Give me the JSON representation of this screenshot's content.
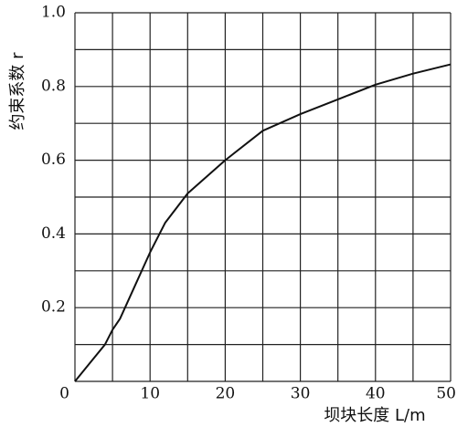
{
  "chart_data": {
    "type": "line",
    "ylabel": "约束系数 r",
    "xlabel": "坝块长度 L/m",
    "x": [
      0,
      2,
      4,
      5,
      6,
      8,
      10,
      12,
      15,
      20,
      25,
      30,
      35,
      40,
      45,
      50
    ],
    "series": [
      {
        "color": "#111111",
        "values": [
          0,
          0.05,
          0.1,
          0.14,
          0.17,
          0.26,
          0.35,
          0.43,
          0.51,
          0.6,
          0.68,
          0.725,
          0.765,
          0.805,
          0.835,
          0.86
        ]
      }
    ],
    "xlim": [
      0,
      50
    ],
    "ylim": [
      0,
      1
    ],
    "xticks": [
      0,
      10,
      20,
      30,
      40,
      50
    ],
    "yticks": [
      0.2,
      0.4,
      0.6,
      0.8,
      {
        "value": 1,
        "label": "1.0"
      }
    ],
    "xgrid": [
      0,
      5,
      10,
      15,
      20,
      25,
      30,
      35,
      40,
      45,
      50
    ],
    "ygrid": [
      0,
      0.1,
      0.2,
      0.3,
      0.4,
      0.5,
      0.6,
      0.7,
      0.8,
      0.9,
      1
    ]
  }
}
